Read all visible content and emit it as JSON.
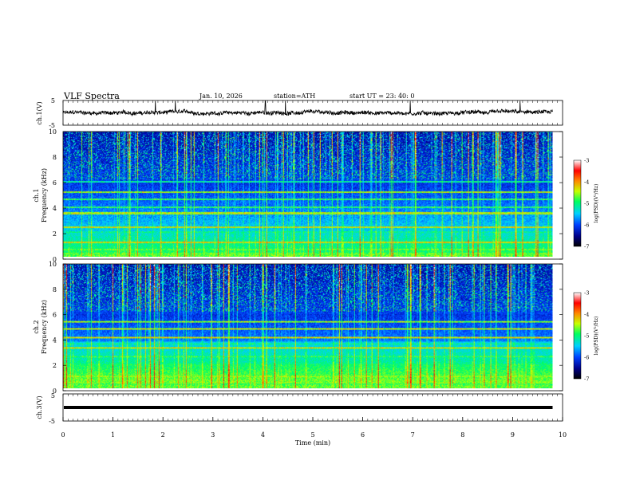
{
  "header": {
    "title": "VLF  Spectra",
    "date": "Jan.  10,  2026",
    "station": "station=ATH",
    "start": "start  UT  =   23: 40: 0"
  },
  "chart_data": [
    {
      "type": "line",
      "panel": "ch1-waveform",
      "ylabel": "ch.1(V)",
      "ylim": [
        -5,
        5
      ],
      "yticks": [
        "5",
        "-5"
      ],
      "xlim": [
        0,
        10
      ],
      "stop_x": 9.8,
      "baseline": 0,
      "noise_amplitude": 1.5,
      "spikes_x": [
        1.85,
        2.25,
        4.05,
        4.45,
        6.95,
        9.15
      ]
    },
    {
      "type": "heatmap",
      "panel": "ch1-spectrogram",
      "ylabel": "ch.1",
      "ylabel2": "Frequency (kHz)",
      "ylim": [
        0,
        10
      ],
      "yticks": [
        "0",
        "2",
        "4",
        "6",
        "8",
        "10"
      ],
      "xlim": [
        0,
        10
      ],
      "stop_x": 9.8,
      "colorbar": {
        "label": "log(PSD)(V²/Hz)",
        "range": [
          -7,
          -3
        ],
        "ticks": [
          "-3",
          "-4",
          "-5",
          "-6",
          "-7"
        ]
      },
      "bands_khz": [
        0.6,
        1.2,
        2.0,
        2.4,
        3.5,
        4.0,
        4.6,
        5.2,
        6.0
      ]
    },
    {
      "type": "heatmap",
      "panel": "ch2-spectrogram",
      "ylabel": "ch.2",
      "ylabel2": "Frequency (kHz)",
      "ylim": [
        0,
        10
      ],
      "yticks": [
        "0",
        "2",
        "4",
        "6",
        "8",
        "10"
      ],
      "xlim": [
        0,
        10
      ],
      "stop_x": 9.8,
      "colorbar": {
        "label": "log(PSD)(V²/Hz)",
        "range": [
          -7,
          -3
        ],
        "ticks": [
          "-3",
          "-4",
          "-5",
          "-6",
          "-7"
        ]
      },
      "bands_khz": [
        0.6,
        1.0,
        1.9,
        2.6,
        3.3,
        3.6,
        4.1,
        4.8,
        5.4
      ]
    },
    {
      "type": "line",
      "panel": "ch3-waveform",
      "ylabel": "ch.3(V)",
      "ylim": [
        -5,
        5
      ],
      "yticks": [
        "5",
        "-5"
      ],
      "xlim": [
        0,
        10
      ],
      "stop_x": 9.8,
      "baseline": 0,
      "noise_amplitude": 0
    }
  ],
  "xaxis": {
    "label": "Time  (min)",
    "ticks": [
      "0",
      "1",
      "2",
      "3",
      "4",
      "5",
      "6",
      "7",
      "8",
      "9",
      "10"
    ]
  }
}
